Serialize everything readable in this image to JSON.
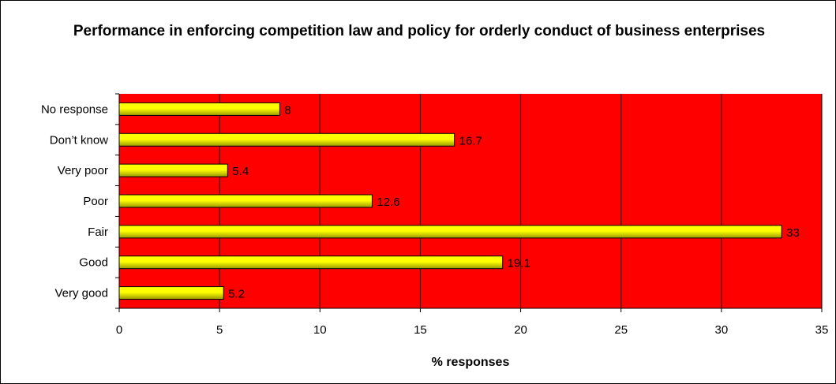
{
  "chart_data": {
    "type": "bar",
    "orientation": "horizontal",
    "title": "Performance in enforcing competition law and policy for orderly conduct of business enterprises",
    "xlabel": "% responses",
    "ylabel": "",
    "categories": [
      "No response",
      "Don’t know",
      "Very poor",
      "Poor",
      "Fair",
      "Good",
      "Very good"
    ],
    "values": [
      8,
      16.7,
      5.4,
      12.6,
      33,
      19.1,
      5.2
    ],
    "value_labels": [
      "8",
      "16.7",
      "5.4",
      "12.6",
      "33",
      "19.1",
      "5.2"
    ],
    "xlim": [
      0,
      35
    ],
    "x_ticks": [
      0,
      5,
      10,
      15,
      20,
      25,
      30,
      35
    ],
    "x_tick_labels": [
      "0",
      "5",
      "10",
      "15",
      "20",
      "25",
      "30",
      "35"
    ],
    "grid": true,
    "legend": "none",
    "colors": {
      "plot_background": "#FF0000",
      "bar_fill": "#FFFF00",
      "bar_shade": "#999900",
      "bar_outline": "#000000",
      "gridline": "#000000"
    }
  }
}
